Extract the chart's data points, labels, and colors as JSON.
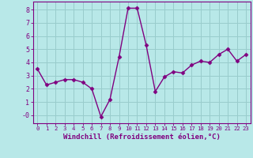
{
  "x": [
    0,
    1,
    2,
    3,
    4,
    5,
    6,
    7,
    8,
    9,
    10,
    11,
    12,
    13,
    14,
    15,
    16,
    17,
    18,
    19,
    20,
    21,
    22,
    23
  ],
  "y": [
    3.5,
    2.3,
    2.5,
    2.7,
    2.7,
    2.5,
    2.0,
    -0.1,
    1.2,
    4.4,
    8.1,
    8.1,
    5.3,
    1.8,
    2.9,
    3.3,
    3.2,
    3.8,
    4.1,
    4.0,
    4.6,
    5.0,
    4.1,
    4.6
  ],
  "line_color": "#800080",
  "marker": "D",
  "marker_size": 2.5,
  "bg_color": "#b8e8e8",
  "grid_color": "#99cccc",
  "xlabel": "Windchill (Refroidissement éolien,°C)",
  "xlabel_color": "#800080",
  "ytick_vals": [
    0,
    1,
    2,
    3,
    4,
    5,
    6,
    7,
    8
  ],
  "ytick_labels": [
    "-0",
    "1",
    "2",
    "3",
    "4",
    "5",
    "6",
    "7",
    "8"
  ],
  "xlim": [
    -0.5,
    23.5
  ],
  "ylim": [
    -0.6,
    8.6
  ],
  "xtick_labels": [
    "0",
    "1",
    "2",
    "3",
    "4",
    "5",
    "6",
    "7",
    "8",
    "9",
    "10",
    "11",
    "12",
    "13",
    "14",
    "15",
    "16",
    "17",
    "18",
    "19",
    "20",
    "21",
    "22",
    "23"
  ],
  "tick_color": "#800080",
  "spine_color": "#800080",
  "line_width": 1.0,
  "xlabel_fontsize": 6.5,
  "xtick_fontsize": 5.2,
  "ytick_fontsize": 6.0
}
